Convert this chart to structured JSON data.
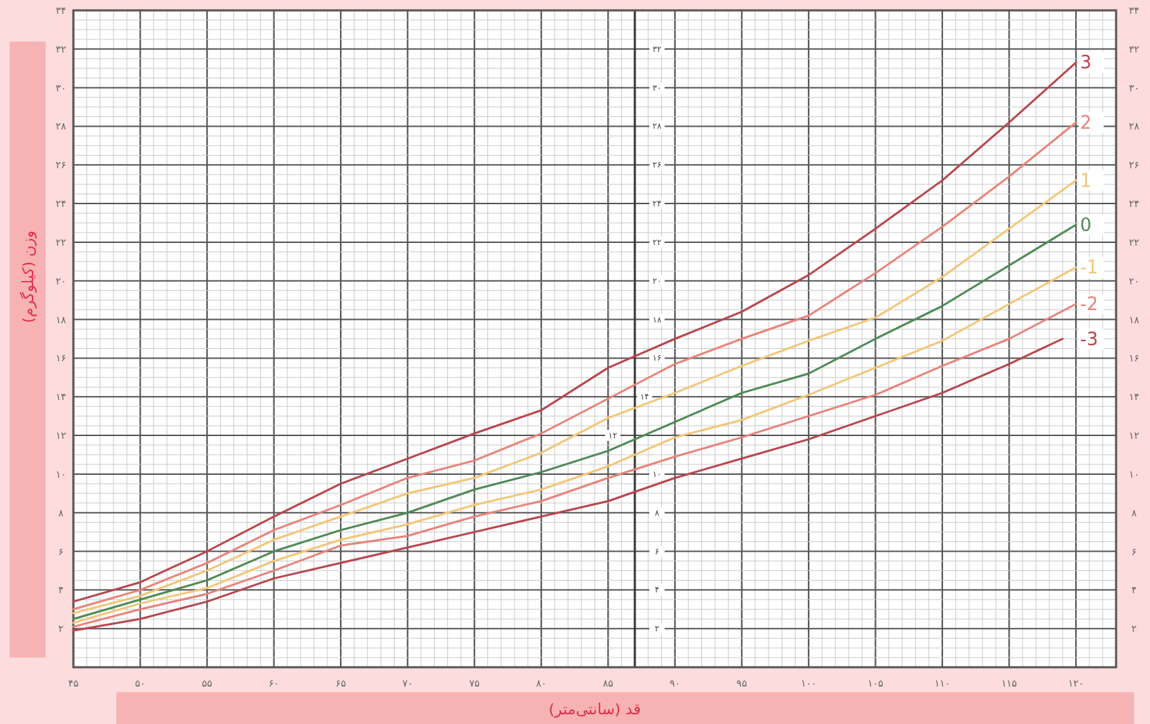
{
  "chart_data": {
    "type": "line",
    "xlabel": "قد (سانتی‌متر)",
    "ylabel": "وزن (کیلوگرم)",
    "x": [
      45,
      50,
      55,
      60,
      65,
      70,
      75,
      80,
      85,
      90,
      95,
      100,
      105,
      110,
      115,
      120
    ],
    "series": [
      {
        "name": "3",
        "color": "#b8474f",
        "values": [
          3.4,
          4.4,
          6.0,
          7.8,
          9.5,
          10.8,
          12.1,
          13.3,
          15.5,
          17.0,
          18.4,
          20.3,
          22.7,
          25.2,
          28.2,
          31.3
        ]
      },
      {
        "name": "2",
        "color": "#e8837a",
        "values": [
          3.0,
          4.0,
          5.4,
          7.1,
          8.4,
          9.8,
          10.7,
          12.1,
          13.9,
          15.7,
          17.0,
          18.2,
          20.4,
          22.8,
          25.4,
          28.2
        ]
      },
      {
        "name": "1",
        "color": "#f2c679",
        "values": [
          2.8,
          3.7,
          5.0,
          6.6,
          7.8,
          9.0,
          9.8,
          11.1,
          12.9,
          14.2,
          15.6,
          16.9,
          18.1,
          20.2,
          22.7,
          25.2
        ]
      },
      {
        "name": "0",
        "color": "#4f8a55",
        "values": [
          2.5,
          3.5,
          4.5,
          6.0,
          7.1,
          8.0,
          9.2,
          10.1,
          11.2,
          12.7,
          14.2,
          15.2,
          17.0,
          18.7,
          20.8,
          22.9
        ]
      },
      {
        "name": "-1",
        "color": "#f2c679",
        "values": [
          2.3,
          3.3,
          4.1,
          5.5,
          6.6,
          7.4,
          8.4,
          9.2,
          10.4,
          11.9,
          12.8,
          14.1,
          15.5,
          16.9,
          18.8,
          20.7
        ]
      },
      {
        "name": "-2",
        "color": "#e8837a",
        "values": [
          2.1,
          3.0,
          3.8,
          5.0,
          6.3,
          6.8,
          7.8,
          8.6,
          9.8,
          10.9,
          11.9,
          13.0,
          14.1,
          15.6,
          17.0,
          18.8
        ]
      },
      {
        "name": "-3",
        "color": "#b8474f",
        "x": [
          45,
          50,
          55,
          60,
          65,
          70,
          75,
          80,
          85,
          90,
          95,
          100,
          105,
          110,
          115,
          119
        ],
        "values": [
          1.9,
          2.5,
          3.4,
          4.6,
          5.4,
          6.2,
          7.0,
          7.8,
          8.6,
          9.8,
          10.8,
          11.8,
          13.0,
          14.2,
          15.7,
          17.0
        ]
      }
    ],
    "xlim": [
      45,
      123
    ],
    "ylim": [
      0,
      34
    ],
    "xticks": [
      {
        "value": 45,
        "label": "۴۵"
      },
      {
        "value": 50,
        "label": "۵۰"
      },
      {
        "value": 55,
        "label": "۵۵"
      },
      {
        "value": 60,
        "label": "۶۰"
      },
      {
        "value": 65,
        "label": "۶۵"
      },
      {
        "value": 70,
        "label": "۷۰"
      },
      {
        "value": 75,
        "label": "۷۵"
      },
      {
        "value": 80,
        "label": "۸۰"
      },
      {
        "value": 85,
        "label": "۸۵"
      },
      {
        "value": 90,
        "label": "۹۰"
      },
      {
        "value": 95,
        "label": "۹۵"
      },
      {
        "value": 100,
        "label": "۱۰۰"
      },
      {
        "value": 105,
        "label": "۱۰۵"
      },
      {
        "value": 110,
        "label": "۱۱۰"
      },
      {
        "value": 115,
        "label": "۱۱۵"
      },
      {
        "value": 120,
        "label": "۱۲۰"
      }
    ],
    "yticks": [
      {
        "value": 2,
        "label": "۲"
      },
      {
        "value": 4,
        "label": "۴"
      },
      {
        "value": 6,
        "label": "۶"
      },
      {
        "value": 8,
        "label": "۸"
      },
      {
        "value": 10,
        "label": "۱۰"
      },
      {
        "value": 12,
        "label": "۱۲"
      },
      {
        "value": 14,
        "label": "۱۴"
      },
      {
        "value": 16,
        "label": "۱۶"
      },
      {
        "value": 18,
        "label": "۱۸"
      },
      {
        "value": 20,
        "label": "۲۰"
      },
      {
        "value": 22,
        "label": "۲۲"
      },
      {
        "value": 24,
        "label": "۲۴"
      },
      {
        "value": 26,
        "label": "۲۶"
      },
      {
        "value": 28,
        "label": "۲۸"
      },
      {
        "value": 30,
        "label": "۳۰"
      },
      {
        "value": 32,
        "label": "۳۲"
      },
      {
        "value": 34,
        "label": "۳۴"
      }
    ],
    "y2lim": [
      0,
      34
    ],
    "y2ticks": [
      {
        "value": 2,
        "label": "۲"
      },
      {
        "value": 4,
        "label": "۴"
      },
      {
        "value": 6,
        "label": "۶"
      },
      {
        "value": 8,
        "label": "۸"
      },
      {
        "value": 10,
        "label": "۱۰"
      },
      {
        "value": 12,
        "label": "۱۲"
      },
      {
        "value": 14,
        "label": "۱۴"
      },
      {
        "value": 16,
        "label": "۱۶"
      },
      {
        "value": 18,
        "label": "۱۸"
      },
      {
        "value": 20,
        "label": "۲۰"
      },
      {
        "value": 22,
        "label": "۲۲"
      },
      {
        "value": 24,
        "label": "۲۴"
      },
      {
        "value": 26,
        "label": "۲۶"
      },
      {
        "value": 28,
        "label": "۲۸"
      },
      {
        "value": 30,
        "label": "۳۰"
      },
      {
        "value": 32,
        "label": "۳۲"
      },
      {
        "value": 34,
        "label": "۳۴"
      }
    ],
    "ref_lines": [
      {
        "axis": "x",
        "value": 87,
        "color": "#333333"
      }
    ],
    "grid": true,
    "marker": "none",
    "line_style": "solid",
    "legend": false
  }
}
